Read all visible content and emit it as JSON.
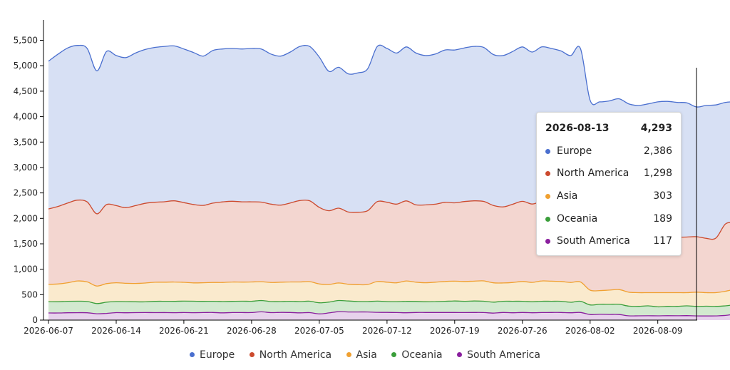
{
  "chart_data": {
    "type": "area",
    "stacked": true,
    "x_start": "2026-06-07",
    "x_end": "2026-08-13",
    "x_tick_labels": [
      "2026-06-07",
      "2026-06-14",
      "2026-06-21",
      "2026-06-28",
      "2026-07-05",
      "2026-07-12",
      "2026-07-19",
      "2026-07-26",
      "2026-08-02",
      "2026-08-09"
    ],
    "y_ticks": [
      0,
      500,
      1000,
      1500,
      2000,
      2500,
      3000,
      3500,
      4000,
      4500,
      5000,
      5500
    ],
    "y_tick_labels": [
      "0",
      "500",
      "1,000",
      "1,500",
      "2,000",
      "2,500",
      "3,000",
      "3,500",
      "4,000",
      "4,500",
      "5,000",
      "5,500"
    ],
    "ylim": [
      0,
      5900
    ],
    "legend_position": "bottom",
    "totals": [
      5090,
      5230,
      5350,
      5400,
      5340,
      4900,
      5280,
      5200,
      5160,
      5250,
      5320,
      5360,
      5380,
      5390,
      5330,
      5260,
      5190,
      5300,
      5330,
      5340,
      5330,
      5340,
      5330,
      5230,
      5190,
      5270,
      5380,
      5380,
      5170,
      4900,
      4970,
      4840,
      4860,
      4940,
      5380,
      5340,
      5250,
      5370,
      5250,
      5200,
      5230,
      5310,
      5310,
      5350,
      5380,
      5360,
      5220,
      5200,
      5280,
      5370,
      5270,
      5370,
      5340,
      5290,
      5200,
      5340,
      4320,
      4290,
      4310,
      4350,
      4250,
      4220,
      4250,
      4290,
      4300,
      4280,
      4270,
      4190,
      4220,
      4230,
      4280,
      4290
    ],
    "series": [
      {
        "name": "Europe",
        "color": "#4a6fcf",
        "fill": "#d7e0f4",
        "values": [
          2905,
          2995,
          3047,
          3042,
          3017,
          2810,
          3010,
          2950,
          2950,
          3000,
          3025,
          3043,
          3053,
          3045,
          3020,
          2987,
          2935,
          3000,
          3007,
          3004,
          3005,
          3015,
          3010,
          2950,
          2930,
          2967,
          3030,
          3034,
          2955,
          2740,
          2770,
          2715,
          2739,
          2790,
          3050,
          3024,
          2970,
          3027,
          2985,
          2935,
          2951,
          2995,
          3005,
          3020,
          3036,
          3027,
          2966,
          2975,
          3003,
          3035,
          2988,
          3040,
          3015,
          3000,
          2930,
          3014,
          2615,
          2623,
          2628,
          2637,
          2620,
          2585,
          2626,
          2661,
          2663,
          2652,
          2637,
          2550,
          2612,
          2619,
          2389,
          2386
        ]
      },
      {
        "name": "North America",
        "color": "#cc4a2e",
        "fill": "#f3d6d0",
        "values": [
          1483,
          1525,
          1568,
          1589,
          1572,
          1420,
          1553,
          1516,
          1487,
          1530,
          1566,
          1573,
          1582,
          1596,
          1567,
          1542,
          1521,
          1560,
          1583,
          1587,
          1578,
          1575,
          1565,
          1540,
          1515,
          1553,
          1600,
          1589,
          1505,
          1450,
          1470,
          1420,
          1425,
          1450,
          1572,
          1571,
          1547,
          1574,
          1520,
          1530,
          1534,
          1555,
          1540,
          1570,
          1579,
          1562,
          1521,
          1495,
          1537,
          1575,
          1540,
          1560,
          1560,
          1530,
          1530,
          1576,
          1116,
          1087,
          1092,
          1113,
          1080,
          1095,
          1084,
          1089,
          1097,
          1088,
          1093,
          1090,
          1068,
          1071,
          1324,
          1298
        ]
      },
      {
        "name": "Asia",
        "color": "#f0a030",
        "fill": "#faeacd",
        "values": [
          340,
          350,
          365,
          398,
          385,
          345,
          365,
          370,
          360,
          360,
          370,
          375,
          375,
          380,
          370,
          360,
          365,
          370,
          375,
          380,
          375,
          380,
          370,
          375,
          380,
          380,
          385,
          385,
          370,
          345,
          345,
          330,
          330,
          335,
          385,
          380,
          370,
          400,
          378,
          375,
          380,
          390,
          390,
          390,
          390,
          400,
          380,
          360,
          370,
          390,
          382,
          400,
          395,
          390,
          390,
          380,
          290,
          270,
          280,
          290,
          275,
          270,
          260,
          280,
          270,
          270,
          260,
          280,
          267,
          270,
          287,
          303
        ]
      },
      {
        "name": "Oceania",
        "color": "#3a9e3a",
        "fill": "#d2e9cf",
        "values": [
          222,
          220,
          225,
          225,
          221,
          200,
          220,
          217,
          218,
          213,
          211,
          222,
          222,
          223,
          225,
          225,
          221,
          220,
          222,
          221,
          224,
          222,
          222,
          218,
          213,
          220,
          222,
          225,
          218,
          214,
          219,
          215,
          206,
          205,
          220,
          214,
          214,
          224,
          217,
          210,
          215,
          220,
          225,
          222,
          225,
          222,
          215,
          220,
          225,
          220,
          215,
          222,
          220,
          220,
          205,
          220,
          189,
          197,
          199,
          200,
          191,
          186,
          195,
          176,
          183,
          184,
          192,
          187,
          192,
          187,
          187,
          189
        ]
      },
      {
        "name": "South America",
        "color": "#8a1f9e",
        "fill": "#e7d2ec",
        "values": [
          140,
          140,
          145,
          146,
          145,
          125,
          132,
          147,
          145,
          147,
          148,
          147,
          148,
          146,
          148,
          146,
          148,
          150,
          143,
          148,
          148,
          148,
          163,
          147,
          152,
          150,
          143,
          147,
          122,
          141,
          166,
          160,
          160,
          160,
          153,
          151,
          149,
          145,
          150,
          150,
          150,
          150,
          150,
          148,
          150,
          149,
          138,
          150,
          145,
          150,
          145,
          148,
          150,
          150,
          145,
          150,
          110,
          113,
          111,
          110,
          84,
          84,
          85,
          84,
          87,
          86,
          88,
          83,
          81,
          83,
          93,
          117
        ]
      }
    ],
    "tooltip": {
      "date": "2026-08-13",
      "total": "4,293",
      "rows": [
        {
          "name": "Europe",
          "value": "2,386"
        },
        {
          "name": "North America",
          "value": "1,298"
        },
        {
          "name": "Asia",
          "value": "303"
        },
        {
          "name": "Oceania",
          "value": "189"
        },
        {
          "name": "South America",
          "value": "117"
        }
      ]
    }
  }
}
